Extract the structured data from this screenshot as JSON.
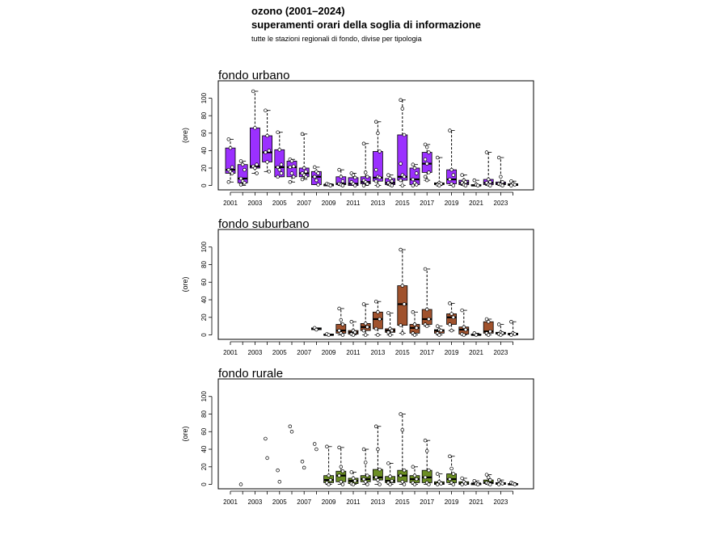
{
  "header": {
    "title": "ozono (2001–2024)",
    "subtitle": "superamenti orari della soglia di informazione",
    "note": "tutte le stazioni regionali di fondo, divise per tipologia"
  },
  "chart_data": [
    {
      "type": "boxplot",
      "title": "fondo urbano",
      "ylabel": "(ore)",
      "ylim": [
        -5,
        120
      ],
      "yticks": [
        0,
        20,
        40,
        60,
        80,
        100
      ],
      "color": "#9b30ff",
      "years": [
        2001,
        2002,
        2003,
        2004,
        2005,
        2006,
        2007,
        2008,
        2009,
        2010,
        2011,
        2012,
        2013,
        2014,
        2015,
        2016,
        2017,
        2018,
        2019,
        2020,
        2021,
        2022,
        2023,
        2024
      ],
      "xtick_labels": [
        "2001",
        "2003",
        "2005",
        "2007",
        "2009",
        "2011",
        "2013",
        "2015",
        "2017",
        "2019",
        "2021",
        "2023"
      ],
      "boxes": [
        {
          "year": 2001,
          "min": 4,
          "q1": 14,
          "median": 18,
          "q3": 43,
          "max": 53,
          "points": [
            53,
            43,
            21,
            18,
            16,
            14,
            4
          ]
        },
        {
          "year": 2002,
          "min": 0,
          "q1": 3,
          "median": 8,
          "q3": 24,
          "max": 28,
          "points": [
            28,
            24,
            18,
            8,
            5,
            3,
            1
          ]
        },
        {
          "year": 2003,
          "min": 14,
          "q1": 20,
          "median": 22,
          "q3": 66,
          "max": 108,
          "points": [
            108,
            66,
            24,
            22,
            20,
            14
          ]
        },
        {
          "year": 2004,
          "min": 16,
          "q1": 27,
          "median": 38,
          "q3": 57,
          "max": 86,
          "points": [
            86,
            57,
            40,
            38,
            27,
            16
          ]
        },
        {
          "year": 2005,
          "min": 10,
          "q1": 10,
          "median": 21,
          "q3": 41,
          "max": 61,
          "points": [
            61,
            41,
            24,
            21,
            18,
            14,
            10
          ]
        },
        {
          "year": 2006,
          "min": 4,
          "q1": 10,
          "median": 21,
          "q3": 28,
          "max": 30,
          "points": [
            30,
            28,
            22,
            21,
            14,
            10,
            4
          ]
        },
        {
          "year": 2007,
          "min": 7,
          "q1": 10,
          "median": 14,
          "q3": 20,
          "max": 59,
          "points": [
            59,
            20,
            16,
            14,
            12,
            10,
            7
          ]
        },
        {
          "year": 2008,
          "min": 1,
          "q1": 1,
          "median": 10,
          "q3": 16,
          "max": 21,
          "points": [
            21,
            16,
            14,
            10,
            6,
            1
          ]
        },
        {
          "year": 2009,
          "min": 0,
          "q1": 0,
          "median": 1,
          "q3": 1,
          "max": 2,
          "points": [
            2,
            1,
            0
          ]
        },
        {
          "year": 2010,
          "min": 0,
          "q1": 1,
          "median": 2,
          "q3": 10,
          "max": 18,
          "points": [
            18,
            10,
            5,
            2,
            1,
            0
          ]
        },
        {
          "year": 2011,
          "min": 0,
          "q1": 0,
          "median": 2,
          "q3": 9,
          "max": 14,
          "points": [
            14,
            12,
            9,
            4,
            2,
            0
          ]
        },
        {
          "year": 2012,
          "min": 0,
          "q1": 2,
          "median": 4,
          "q3": 10,
          "max": 48,
          "points": [
            48,
            15,
            10,
            6,
            4,
            2,
            0
          ]
        },
        {
          "year": 2013,
          "min": 0,
          "q1": 5,
          "median": 9,
          "q3": 39,
          "max": 73,
          "points": [
            73,
            60,
            39,
            18,
            10,
            9,
            5,
            0
          ]
        },
        {
          "year": 2014,
          "min": 0,
          "q1": 1,
          "median": 3,
          "q3": 8,
          "max": 12,
          "points": [
            12,
            8,
            5,
            3,
            1,
            0
          ]
        },
        {
          "year": 2015,
          "min": 0,
          "q1": 6,
          "median": 10,
          "q3": 58,
          "max": 98,
          "points": [
            98,
            88,
            58,
            25,
            12,
            10,
            6,
            0
          ]
        },
        {
          "year": 2016,
          "min": 0,
          "q1": 1,
          "median": 7,
          "q3": 20,
          "max": 24,
          "points": [
            24,
            20,
            14,
            7,
            3,
            1,
            0
          ]
        },
        {
          "year": 2017,
          "min": 6,
          "q1": 15,
          "median": 25,
          "q3": 38,
          "max": 47,
          "points": [
            47,
            44,
            38,
            30,
            25,
            15,
            10,
            6
          ]
        },
        {
          "year": 2018,
          "min": 0,
          "q1": 1,
          "median": 2,
          "q3": 3,
          "max": 32,
          "points": [
            32,
            3,
            2,
            1,
            0
          ]
        },
        {
          "year": 2019,
          "min": 0,
          "q1": 2,
          "median": 7,
          "q3": 18,
          "max": 63,
          "points": [
            63,
            18,
            12,
            7,
            2,
            0
          ]
        },
        {
          "year": 2020,
          "min": 0,
          "q1": 1,
          "median": 3,
          "q3": 6,
          "max": 12,
          "points": [
            12,
            6,
            4,
            3,
            1,
            0
          ]
        },
        {
          "year": 2021,
          "min": 0,
          "q1": 0,
          "median": 0,
          "q3": 1,
          "max": 6,
          "points": [
            6,
            1,
            0
          ]
        },
        {
          "year": 2022,
          "min": 0,
          "q1": 1,
          "median": 3,
          "q3": 7,
          "max": 38,
          "points": [
            38,
            7,
            4,
            3,
            1,
            0
          ]
        },
        {
          "year": 2023,
          "min": 0,
          "q1": 1,
          "median": 2,
          "q3": 4,
          "max": 32,
          "points": [
            32,
            10,
            4,
            2,
            1,
            0
          ]
        },
        {
          "year": 2024,
          "min": 0,
          "q1": 0,
          "median": 1,
          "q3": 2,
          "max": 5,
          "points": [
            5,
            2,
            1,
            0
          ]
        }
      ]
    },
    {
      "type": "boxplot",
      "title": "fondo suburbano",
      "ylabel": "(ore)",
      "ylim": [
        -5,
        120
      ],
      "yticks": [
        0,
        20,
        40,
        60,
        80,
        100
      ],
      "color": "#a0522d",
      "years": [
        2001,
        2002,
        2003,
        2004,
        2005,
        2006,
        2007,
        2008,
        2009,
        2010,
        2011,
        2012,
        2013,
        2014,
        2015,
        2016,
        2017,
        2018,
        2019,
        2020,
        2021,
        2022,
        2023,
        2024
      ],
      "xtick_labels": [
        "2001",
        "2003",
        "2005",
        "2007",
        "2009",
        "2011",
        "2013",
        "2015",
        "2017",
        "2019",
        "2021",
        "2023"
      ],
      "boxes": [
        {
          "year": 2008,
          "min": 6,
          "q1": 6,
          "median": 7,
          "q3": 8,
          "max": 8,
          "points": [
            8,
            6
          ]
        },
        {
          "year": 2009,
          "min": 0,
          "q1": 0,
          "median": 0,
          "q3": 1,
          "max": 1,
          "points": [
            1,
            0
          ]
        },
        {
          "year": 2010,
          "min": 0,
          "q1": 2,
          "median": 5,
          "q3": 12,
          "max": 30,
          "points": [
            30,
            17,
            12,
            5,
            2,
            0
          ]
        },
        {
          "year": 2011,
          "min": 0,
          "q1": 1,
          "median": 3,
          "q3": 5,
          "max": 15,
          "points": [
            15,
            5,
            3,
            1,
            0
          ]
        },
        {
          "year": 2012,
          "min": 0,
          "q1": 5,
          "median": 9,
          "q3": 13,
          "max": 35,
          "points": [
            35,
            13,
            9,
            5,
            0
          ]
        },
        {
          "year": 2013,
          "min": 0,
          "q1": 7,
          "median": 18,
          "q3": 26,
          "max": 38,
          "points": [
            38,
            26,
            18,
            7,
            0
          ]
        },
        {
          "year": 2014,
          "min": 0,
          "q1": 3,
          "median": 5,
          "q3": 7,
          "max": 25,
          "points": [
            25,
            7,
            5,
            3,
            0
          ]
        },
        {
          "year": 2015,
          "min": 2,
          "q1": 11,
          "median": 35,
          "q3": 56,
          "max": 97,
          "points": [
            97,
            56,
            35,
            11,
            2
          ]
        },
        {
          "year": 2016,
          "min": 0,
          "q1": 2,
          "median": 8,
          "q3": 12,
          "max": 26,
          "points": [
            26,
            12,
            8,
            2,
            0
          ]
        },
        {
          "year": 2017,
          "min": 10,
          "q1": 12,
          "median": 18,
          "q3": 29,
          "max": 75,
          "points": [
            75,
            29,
            18,
            12,
            10
          ]
        },
        {
          "year": 2018,
          "min": 0,
          "q1": 2,
          "median": 5,
          "q3": 6,
          "max": 10,
          "points": [
            10,
            6,
            5,
            2,
            0
          ]
        },
        {
          "year": 2019,
          "min": 5,
          "q1": 12,
          "median": 20,
          "q3": 24,
          "max": 36,
          "points": [
            36,
            24,
            20,
            12,
            5
          ]
        },
        {
          "year": 2020,
          "min": 0,
          "q1": 1,
          "median": 6,
          "q3": 9,
          "max": 28,
          "points": [
            28,
            9,
            6,
            1,
            0
          ]
        },
        {
          "year": 2021,
          "min": 0,
          "q1": 0,
          "median": 0,
          "q3": 1,
          "max": 2,
          "points": [
            2,
            0
          ]
        },
        {
          "year": 2022,
          "min": 0,
          "q1": 2,
          "median": 4,
          "q3": 15,
          "max": 18,
          "points": [
            18,
            15,
            4,
            2,
            0
          ]
        },
        {
          "year": 2023,
          "min": 0,
          "q1": 1,
          "median": 2,
          "q3": 3,
          "max": 12,
          "points": [
            12,
            3,
            2,
            1,
            0
          ]
        },
        {
          "year": 2024,
          "min": 0,
          "q1": 0,
          "median": 1,
          "q3": 2,
          "max": 15,
          "points": [
            15,
            2,
            1,
            0
          ]
        }
      ]
    },
    {
      "type": "boxplot",
      "title": "fondo rurale",
      "ylabel": "(ore)",
      "ylim": [
        -5,
        120
      ],
      "yticks": [
        0,
        20,
        40,
        60,
        80,
        100
      ],
      "color": "#6b8e23",
      "years": [
        2001,
        2002,
        2003,
        2004,
        2005,
        2006,
        2007,
        2008,
        2009,
        2010,
        2011,
        2012,
        2013,
        2014,
        2015,
        2016,
        2017,
        2018,
        2019,
        2020,
        2021,
        2022,
        2023,
        2024
      ],
      "xtick_labels": [
        "2001",
        "2003",
        "2005",
        "2007",
        "2009",
        "2011",
        "2013",
        "2015",
        "2017",
        "2019",
        "2021",
        "2023"
      ],
      "boxes": [
        {
          "year": 2002,
          "points": [
            0
          ]
        },
        {
          "year": 2004,
          "points": [
            52,
            30
          ]
        },
        {
          "year": 2005,
          "points": [
            16,
            3
          ]
        },
        {
          "year": 2006,
          "points": [
            66,
            60
          ]
        },
        {
          "year": 2007,
          "points": [
            26,
            19
          ]
        },
        {
          "year": 2008,
          "points": [
            46,
            40
          ]
        },
        {
          "year": 2009,
          "min": 0,
          "q1": 2,
          "median": 5,
          "q3": 10,
          "max": 43,
          "points": [
            43,
            10,
            5,
            2,
            0
          ]
        },
        {
          "year": 2010,
          "min": 0,
          "q1": 3,
          "median": 10,
          "q3": 15,
          "max": 42,
          "points": [
            42,
            20,
            15,
            10,
            3,
            0
          ]
        },
        {
          "year": 2011,
          "min": 0,
          "q1": 1,
          "median": 4,
          "q3": 7,
          "max": 14,
          "points": [
            14,
            7,
            4,
            1,
            0
          ]
        },
        {
          "year": 2012,
          "min": 0,
          "q1": 3,
          "median": 6,
          "q3": 10,
          "max": 40,
          "points": [
            40,
            25,
            10,
            6,
            3,
            0
          ]
        },
        {
          "year": 2013,
          "min": 0,
          "q1": 5,
          "median": 8,
          "q3": 17,
          "max": 66,
          "points": [
            66,
            40,
            17,
            8,
            5,
            0
          ]
        },
        {
          "year": 2014,
          "min": 0,
          "q1": 2,
          "median": 4,
          "q3": 9,
          "max": 24,
          "points": [
            24,
            9,
            4,
            2,
            0
          ]
        },
        {
          "year": 2015,
          "min": 0,
          "q1": 3,
          "median": 10,
          "q3": 16,
          "max": 80,
          "points": [
            80,
            62,
            16,
            10,
            3,
            0
          ]
        },
        {
          "year": 2016,
          "min": 0,
          "q1": 2,
          "median": 6,
          "q3": 10,
          "max": 20,
          "points": [
            20,
            10,
            6,
            2,
            0
          ]
        },
        {
          "year": 2017,
          "min": 0,
          "q1": 2,
          "median": 8,
          "q3": 16,
          "max": 50,
          "points": [
            50,
            38,
            16,
            8,
            2,
            0
          ]
        },
        {
          "year": 2018,
          "min": 0,
          "q1": 0,
          "median": 1,
          "q3": 3,
          "max": 12,
          "points": [
            12,
            3,
            1,
            0
          ]
        },
        {
          "year": 2019,
          "min": 0,
          "q1": 2,
          "median": 6,
          "q3": 12,
          "max": 32,
          "points": [
            32,
            18,
            12,
            6,
            2,
            0
          ]
        },
        {
          "year": 2020,
          "min": 0,
          "q1": 0,
          "median": 1,
          "q3": 3,
          "max": 7,
          "points": [
            7,
            3,
            1,
            0
          ]
        },
        {
          "year": 2021,
          "min": 0,
          "q1": 0,
          "median": 1,
          "q3": 1,
          "max": 4,
          "points": [
            4,
            1,
            0
          ]
        },
        {
          "year": 2022,
          "min": 0,
          "q1": 1,
          "median": 2,
          "q3": 5,
          "max": 11,
          "points": [
            11,
            8,
            5,
            2,
            1,
            0
          ]
        },
        {
          "year": 2023,
          "min": 0,
          "q1": 0,
          "median": 1,
          "q3": 2,
          "max": 5,
          "points": [
            5,
            2,
            1,
            0
          ]
        },
        {
          "year": 2024,
          "min": 0,
          "q1": 0,
          "median": 0,
          "q3": 1,
          "max": 2,
          "points": [
            2,
            1,
            0
          ]
        }
      ]
    }
  ]
}
